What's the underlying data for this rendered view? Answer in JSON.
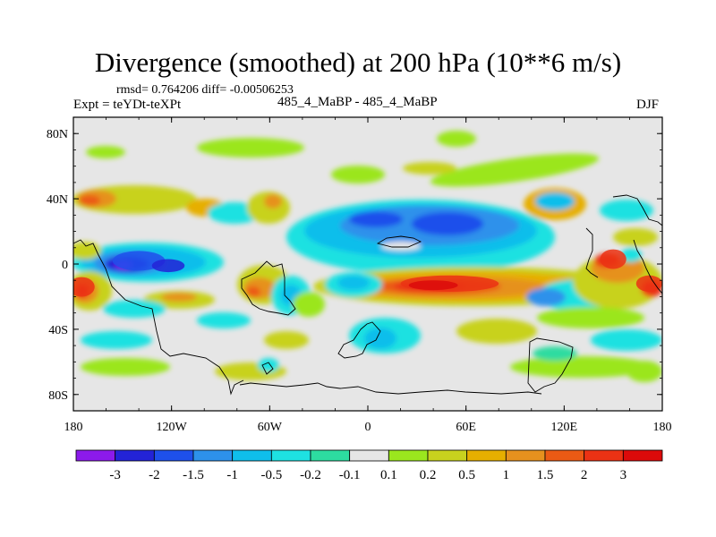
{
  "header": {
    "title": "Divergence (smoothed) at 200 hPa (10**6 m/s)",
    "stats": "rmsd= 0.764206 diff= -0.00506253",
    "left_label": "Expt = teYDt-teXPt",
    "center_label": "485_4_MaBP - 485_4_MaBP",
    "right_label": "DJF"
  },
  "map": {
    "projection": "cylindrical equidistant",
    "lon_range": [
      -180,
      180
    ],
    "lat_range": [
      -90,
      90
    ],
    "lat_ticks": [
      {
        "value": 80,
        "label": "80N"
      },
      {
        "value": 40,
        "label": "40N"
      },
      {
        "value": 0,
        "label": "0"
      },
      {
        "value": -40,
        "label": "40S"
      },
      {
        "value": -80,
        "label": "80S"
      }
    ],
    "lon_ticks": [
      {
        "value": -180,
        "label": "180"
      },
      {
        "value": -120,
        "label": "120W"
      },
      {
        "value": -60,
        "label": "60W"
      },
      {
        "value": 0,
        "label": "0"
      },
      {
        "value": 60,
        "label": "60E"
      },
      {
        "value": 120,
        "label": "120E"
      },
      {
        "value": 180,
        "label": "180"
      }
    ],
    "background_color": "#e6e6e6",
    "field_features": [
      {
        "lon": -140,
        "lat": 2,
        "rx": 16,
        "ry": 6,
        "level": -2
      },
      {
        "lon": -122,
        "lat": -1,
        "rx": 10,
        "ry": 4,
        "level": -3
      },
      {
        "lon": -175,
        "lat": -14,
        "rx": 8,
        "ry": 6,
        "level": 2
      },
      {
        "lon": 50,
        "lat": -12,
        "rx": 30,
        "ry": 5,
        "level": 2
      },
      {
        "lon": 40,
        "lat": -13,
        "rx": 15,
        "ry": 3,
        "level": 3
      },
      {
        "lon": 150,
        "lat": 3,
        "rx": 8,
        "ry": 6,
        "level": 2
      },
      {
        "lon": 172,
        "lat": -12,
        "rx": 8,
        "ry": 5,
        "level": 2
      }
    ]
  },
  "colorbar": {
    "colors": [
      "#8c1aeb",
      "#2323d7",
      "#1e50eb",
      "#2d91eb",
      "#0fbeeb",
      "#1ee1e1",
      "#2ddca0",
      "#e6e6e6",
      "#9be61e",
      "#c8d21e",
      "#e6af00",
      "#e6911e",
      "#eb5a14",
      "#eb3214",
      "#dc0a0a"
    ],
    "labels": [
      "-3",
      "-2",
      "-1.5",
      "-1",
      "-0.5",
      "-0.2",
      "-0.1",
      "0.1",
      "0.2",
      "0.5",
      "1",
      "1.5",
      "2",
      "3"
    ]
  }
}
